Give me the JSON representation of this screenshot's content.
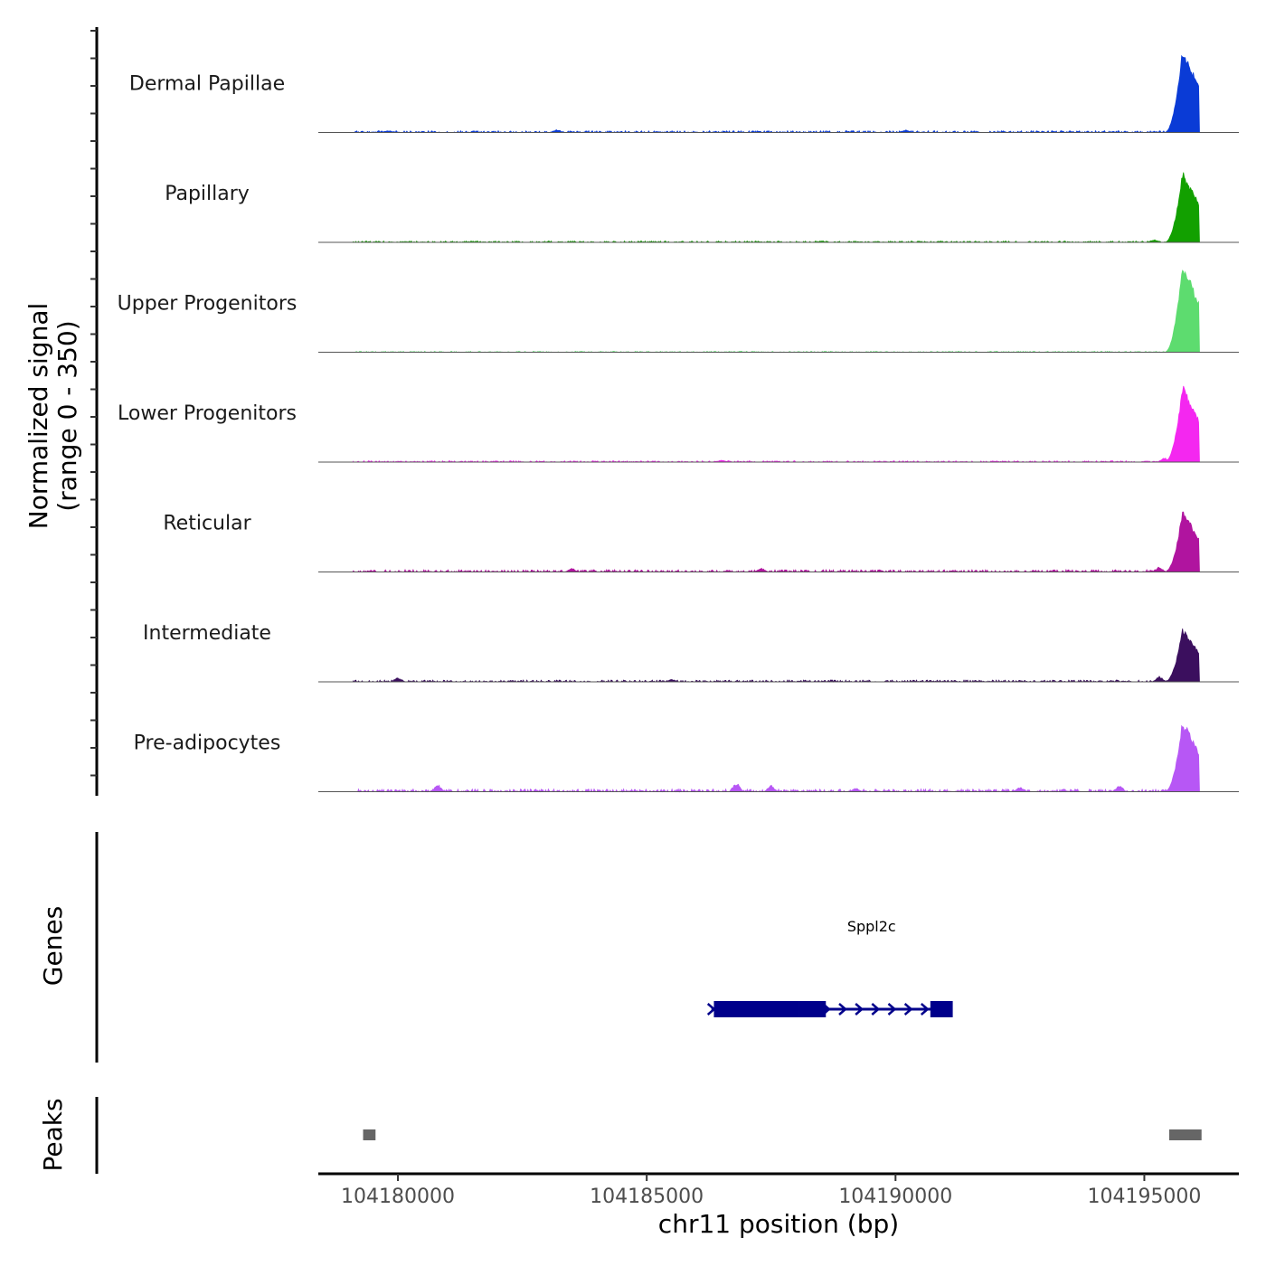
{
  "chart_data": {
    "type": "area",
    "title": "",
    "chromosome": "chr11",
    "xlabel": "chr11 position (bp)",
    "ylabel_line1": "Normalized signal",
    "ylabel_line2": "(range 0 - 350)",
    "y_range": [
      0,
      350
    ],
    "x_range": [
      104178400,
      104196900
    ],
    "x_ticks": [
      104180000,
      104185000,
      104190000,
      104195000
    ],
    "x_tick_labels": [
      "104180000",
      "104185000",
      "104190000",
      "104195000"
    ],
    "peak_region": [
      104195400,
      104196100
    ],
    "tracks": [
      {
        "name": "Dermal Papillae",
        "color": "#0a3bd6",
        "peak_max": 330,
        "bg_level": 4,
        "bumps": [
          [
            104183200,
            12
          ],
          [
            104190200,
            10
          ],
          [
            104179800,
            8
          ]
        ]
      },
      {
        "name": "Papillary",
        "color": "#12a000",
        "peak_max": 280,
        "bg_level": 3,
        "bumps": [
          [
            104195200,
            12
          ]
        ]
      },
      {
        "name": "Upper Progenitors",
        "color": "#5ddc6f",
        "peak_max": 350,
        "bg_level": 2,
        "bumps": []
      },
      {
        "name": "Lower Progenitors",
        "color": "#f427f0",
        "peak_max": 300,
        "bg_level": 3,
        "bumps": [
          [
            104195400,
            18
          ],
          [
            104186500,
            8
          ]
        ]
      },
      {
        "name": "Reticular",
        "color": "#b0149f",
        "peak_max": 240,
        "bg_level": 5,
        "bumps": [
          [
            104183500,
            14
          ],
          [
            104187300,
            16
          ],
          [
            104195300,
            20
          ]
        ]
      },
      {
        "name": "Intermediate",
        "color": "#3b0f5e",
        "peak_max": 210,
        "bg_level": 4,
        "bumps": [
          [
            104180000,
            18
          ],
          [
            104185500,
            10
          ],
          [
            104195300,
            22
          ]
        ]
      },
      {
        "name": "Pre-adipocytes",
        "color": "#b757f5",
        "peak_max": 280,
        "bg_level": 6,
        "bumps": [
          [
            104186800,
            38
          ],
          [
            104180800,
            30
          ],
          [
            104187500,
            24
          ],
          [
            104194500,
            26
          ],
          [
            104189200,
            14
          ],
          [
            104192500,
            18
          ]
        ]
      }
    ],
    "genes": [
      {
        "name": "Sppl2c",
        "color": "#00008b",
        "start": 104186300,
        "end": 104191100,
        "strand": "+",
        "exons": [
          [
            104186350,
            104188050
          ],
          [
            104188050,
            104188600
          ],
          [
            104190700,
            104191150
          ]
        ]
      }
    ],
    "peaks_label": "Peaks",
    "genes_label": "Genes",
    "peaks_color": "#666666",
    "peaks": [
      [
        104179300,
        104179550
      ],
      [
        104195500,
        104196150
      ]
    ]
  }
}
